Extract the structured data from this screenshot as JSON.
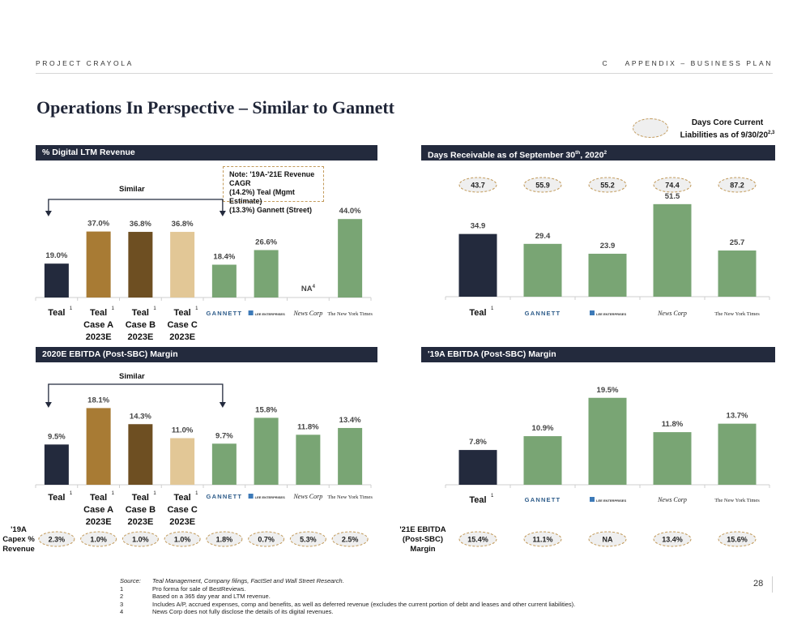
{
  "header": {
    "project": "PROJECT CRAYOLA",
    "section": "C    APPENDIX – BUSINESS PLAN"
  },
  "title": "Operations In Perspective – Similar to Gannett",
  "legend": {
    "label": "Days Core Current Liabilities as of 9/30/20",
    "label_line1": "Days Core Current",
    "label_line2": "Liabilities as of 9/30/20",
    "superscript": "2,3"
  },
  "panels": {
    "digital": {
      "header": "% Digital LTM Revenue",
      "similar_label": "Similar",
      "note_lines": [
        "Note: '19A-'21E Revenue CAGR",
        "(14.2%) Teal (Mgmt Estimate)",
        "(13.3%) Gannett (Street)"
      ]
    },
    "days": {
      "header": "Days Receivable as of September 30",
      "header_sup1": "th",
      "header_mid": ", 2020",
      "header_sup2": "2"
    },
    "ebitda2020": {
      "header": "2020E EBITDA (Post-SBC) Margin",
      "similar_label": "Similar",
      "row_label_lines": [
        "'19A",
        "Capex %",
        "Revenue"
      ]
    },
    "ebitda2019": {
      "header": "'19A EBITDA (Post-SBC) Margin",
      "row_label_lines": [
        "'21E EBITDA",
        "(Post-SBC)",
        "Margin"
      ]
    }
  },
  "colors": {
    "navy": "#232a3d",
    "gold": "#a87b34",
    "brown": "#6e4f22",
    "tan": "#e2c796",
    "green": "#79a574",
    "ellipse_border": "#c29a5a",
    "ellipse_fill": "#efefef"
  },
  "chart_data": [
    {
      "type": "bar",
      "title": "% Digital LTM Revenue",
      "categories": [
        "Teal",
        "Teal Case A 2023E",
        "Teal Case B 2023E",
        "Teal Case C 2023E",
        "Gannett",
        "Lee Enterprises",
        "News Corp",
        "The New York Times"
      ],
      "category_lines": [
        [
          "Teal"
        ],
        [
          "Teal",
          "Case A",
          "2023E"
        ],
        [
          "Teal",
          "Case B",
          "2023E"
        ],
        [
          "Teal",
          "Case C",
          "2023E"
        ],
        [
          "GANNETT"
        ],
        [
          "LEE ENTERPRISES"
        ],
        [
          "News Corp"
        ],
        [
          "The New York Times"
        ]
      ],
      "category_footnotes": [
        "1",
        "1",
        "1",
        "1",
        "",
        "",
        "",
        ""
      ],
      "values": [
        19.0,
        37.0,
        36.8,
        36.8,
        18.4,
        26.6,
        null,
        44.0
      ],
      "labels": [
        "19.0%",
        "37.0%",
        "36.8%",
        "36.8%",
        "18.4%",
        "26.6%",
        "NA",
        "44.0%"
      ],
      "label_footnotes": [
        "",
        "",
        "",
        "",
        "",
        "",
        "4",
        ""
      ],
      "colors": [
        "navy",
        "gold",
        "brown",
        "tan",
        "green",
        "green",
        "green",
        "green"
      ],
      "annotation": "Similar (Teal vs Gannett)",
      "ylim": [
        0,
        50
      ]
    },
    {
      "type": "bar",
      "title": "Days Receivable as of September 30th, 2020",
      "categories": [
        "Teal",
        "Gannett",
        "Lee Enterprises",
        "News Corp",
        "The New York Times"
      ],
      "category_lines": [
        [
          "Teal"
        ],
        [
          "GANNETT"
        ],
        [
          "LEE ENTERPRISES"
        ],
        [
          "News Corp"
        ],
        [
          "The New York Times"
        ]
      ],
      "category_footnotes": [
        "1",
        "",
        "",
        "",
        ""
      ],
      "values": [
        34.9,
        29.4,
        23.9,
        51.5,
        25.7
      ],
      "labels": [
        "34.9",
        "29.4",
        "23.9",
        "51.5",
        "25.7"
      ],
      "colors": [
        "navy",
        "green",
        "green",
        "green",
        "green"
      ],
      "secondary_series": {
        "name": "Days Core Current Liabilities as of 9/30/20",
        "labels": [
          "43.7",
          "55.9",
          "55.2",
          "74.4",
          "87.2"
        ]
      },
      "ylim": [
        0,
        60
      ]
    },
    {
      "type": "bar",
      "title": "2020E EBITDA (Post-SBC) Margin",
      "categories": [
        "Teal",
        "Teal Case A 2023E",
        "Teal Case B 2023E",
        "Teal Case C 2023E",
        "Gannett",
        "Lee Enterprises",
        "News Corp",
        "The New York Times"
      ],
      "category_lines": [
        [
          "Teal"
        ],
        [
          "Teal",
          "Case A",
          "2023E"
        ],
        [
          "Teal",
          "Case B",
          "2023E"
        ],
        [
          "Teal",
          "Case C",
          "2023E"
        ],
        [
          "GANNETT"
        ],
        [
          "LEE ENTERPRISES"
        ],
        [
          "News Corp"
        ],
        [
          "The New York Times"
        ]
      ],
      "category_footnotes": [
        "1",
        "1",
        "1",
        "1",
        "",
        "",
        "",
        ""
      ],
      "values": [
        9.5,
        18.1,
        14.3,
        11.0,
        9.7,
        15.8,
        11.8,
        13.4
      ],
      "labels": [
        "9.5%",
        "18.1%",
        "14.3%",
        "11.0%",
        "9.7%",
        "15.8%",
        "11.8%",
        "13.4%"
      ],
      "colors": [
        "navy",
        "gold",
        "brown",
        "tan",
        "green",
        "green",
        "green",
        "green"
      ],
      "annotation": "Similar (Teal vs Gannett)",
      "secondary_series": {
        "name": "'19A Capex % Revenue",
        "labels": [
          "2.3%",
          "1.0%",
          "1.0%",
          "1.0%",
          "1.8%",
          "0.7%",
          "5.3%",
          "2.5%"
        ]
      },
      "ylim": [
        0,
        22
      ]
    },
    {
      "type": "bar",
      "title": "'19A EBITDA (Post-SBC) Margin",
      "categories": [
        "Teal",
        "Gannett",
        "Lee Enterprises",
        "News Corp",
        "The New York Times"
      ],
      "category_lines": [
        [
          "Teal"
        ],
        [
          "GANNETT"
        ],
        [
          "LEE ENTERPRISES"
        ],
        [
          "News Corp"
        ],
        [
          "The New York Times"
        ]
      ],
      "category_footnotes": [
        "1",
        "",
        "",
        "",
        ""
      ],
      "values": [
        7.8,
        10.9,
        19.5,
        11.8,
        13.7
      ],
      "labels": [
        "7.8%",
        "10.9%",
        "19.5%",
        "11.8%",
        "13.7%"
      ],
      "colors": [
        "navy",
        "green",
        "green",
        "green",
        "green"
      ],
      "secondary_series": {
        "name": "'21E EBITDA (Post-SBC) Margin",
        "labels": [
          "15.4%",
          "11.1%",
          "NA",
          "13.4%",
          "15.6%"
        ]
      },
      "ylim": [
        0,
        24
      ]
    }
  ],
  "footnotes": [
    {
      "key": "Source:",
      "text": "Teal Management, Company filings, FactSet and Wall Street Research."
    },
    {
      "key": "1",
      "text": "Pro forma for sale of BestReviews."
    },
    {
      "key": "2",
      "text": "Based on a 365 day year and LTM revenue."
    },
    {
      "key": "3",
      "text": "Includes A/P, accrued expenses, comp and benefits, as well as deferred revenue (excludes the current portion of debt and leases and other current liabilities)."
    },
    {
      "key": "4",
      "text": "News Corp does not fully disclose the details of its digital revenues."
    }
  ],
  "page_number": "28"
}
